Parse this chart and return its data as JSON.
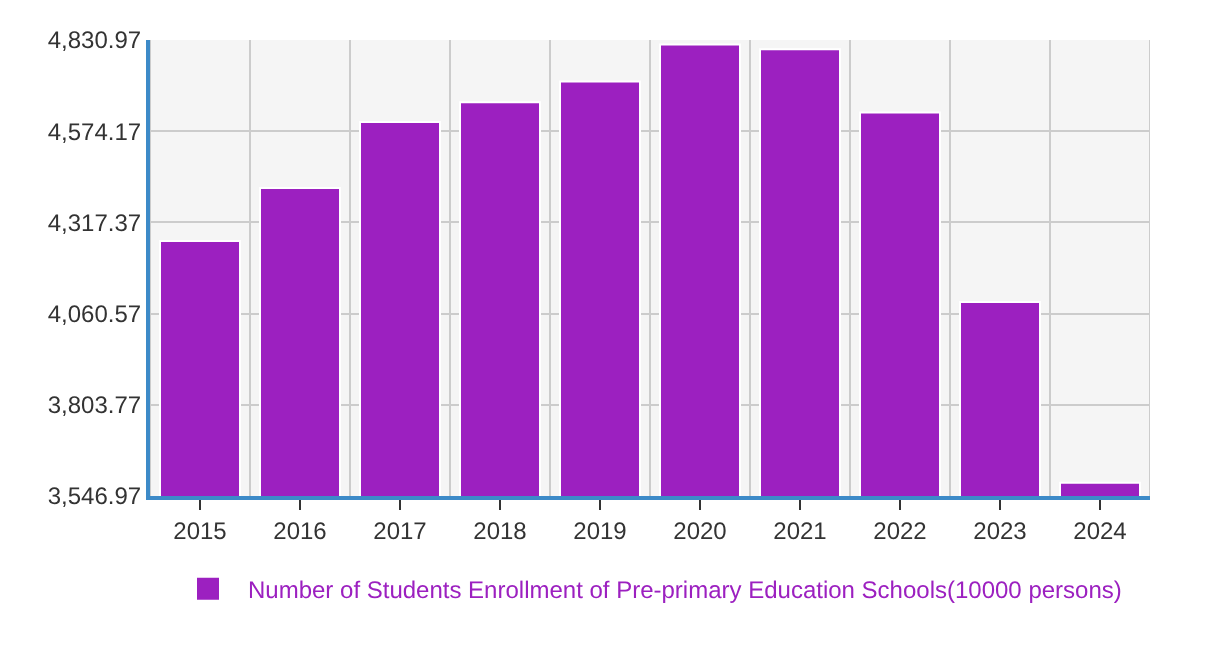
{
  "chart_data": {
    "type": "bar",
    "categories": [
      "2015",
      "2016",
      "2017",
      "2018",
      "2019",
      "2020",
      "2021",
      "2022",
      "2023",
      "2024"
    ],
    "series": [
      {
        "name": "Number of Students Enrollment of Pre-primary Education Schools(10000 persons)",
        "color": "#9c20c0",
        "values": [
          4265,
          4414,
          4600,
          4656,
          4714,
          4818,
          4805,
          4627,
          4093,
          3584
        ]
      }
    ],
    "ylim": [
      3546.97,
      4830.97
    ],
    "yticks": [
      {
        "value": 3546.97,
        "label": "3,546.97"
      },
      {
        "value": 3803.77,
        "label": "3,803.77"
      },
      {
        "value": 4060.57,
        "label": "4,060.57"
      },
      {
        "value": 4317.37,
        "label": "4,317.37"
      },
      {
        "value": 4574.17,
        "label": "4,574.17"
      },
      {
        "value": 4830.97,
        "label": "4,830.97"
      }
    ],
    "grid": true,
    "legend": "bottom"
  }
}
